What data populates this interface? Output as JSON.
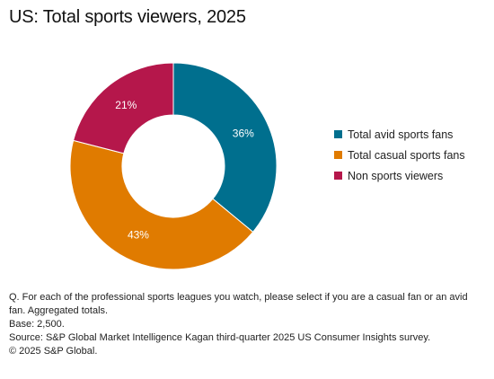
{
  "title": "US: Total sports viewers, 2025",
  "chart_data": {
    "type": "pie",
    "donut": true,
    "title": "US: Total sports viewers, 2025",
    "series": [
      {
        "name": "Total avid sports fans",
        "value": 36,
        "label": "36%",
        "color": "#006f8e"
      },
      {
        "name": "Total casual sports fans",
        "value": 43,
        "label": "43%",
        "color": "#e07b00"
      },
      {
        "name": "Non sports viewers",
        "value": 21,
        "label": "21%",
        "color": "#b5174b"
      }
    ],
    "legend_position": "right"
  },
  "notes": {
    "question": "Q. For each of the professional sports leagues you watch, please select if you are a casual fan or an avid fan. Aggregated totals.",
    "base": "Base: 2,500.",
    "source": "Source: S&P Global Market Intelligence Kagan third-quarter 2025 US Consumer Insights survey.",
    "copyright": "© 2025 S&P Global."
  }
}
